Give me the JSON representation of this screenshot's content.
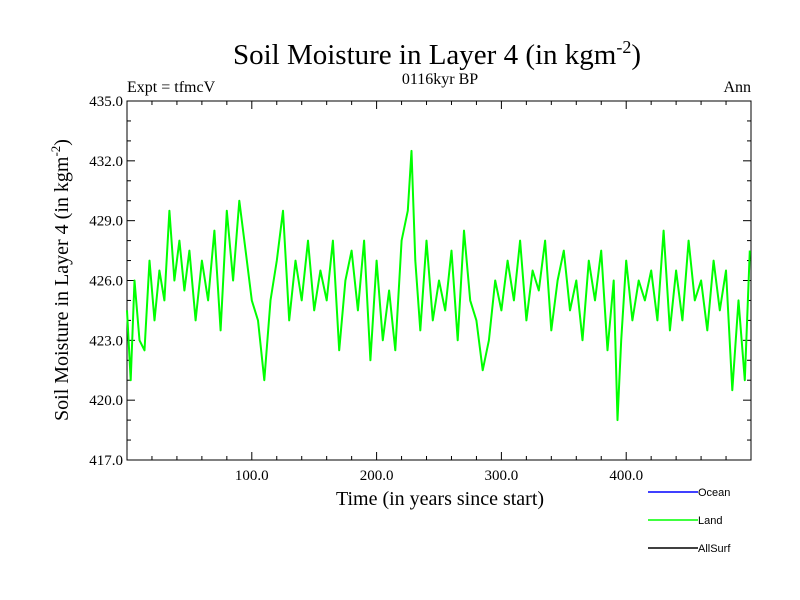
{
  "chart_data": {
    "type": "line",
    "title": "Soil Moisture in Layer 4 (in kgm",
    "title_superscript": "-2",
    "title_close": ")",
    "subtitle_left": "Expt = tfmcV",
    "subtitle_center": "0116kyr BP",
    "subtitle_right": "Ann",
    "xlabel": "Time (in years since start)",
    "ylabel": "Soil Moisture in Layer 4 (in kgm",
    "ylabel_superscript": "-2",
    "ylabel_close": ")",
    "xlim": [
      0,
      500
    ],
    "ylim": [
      417.0,
      435.0
    ],
    "xticks": [
      100,
      200,
      300,
      400
    ],
    "xtick_labels": [
      "100.0",
      "200.0",
      "300.0",
      "400.0"
    ],
    "yticks": [
      417,
      420,
      423,
      426,
      429,
      432,
      435
    ],
    "ytick_labels": [
      "417.0",
      "420.0",
      "423.0",
      "426.0",
      "429.0",
      "432.0",
      "435.0"
    ],
    "legend": [
      {
        "name": "Ocean",
        "color": "#0000ff"
      },
      {
        "name": "Land",
        "color": "#00ff00"
      },
      {
        "name": "AllSurf",
        "color": "#000000"
      }
    ],
    "series": [
      {
        "name": "Land",
        "color": "#00ff00",
        "x": [
          0,
          3,
          6,
          10,
          14,
          18,
          22,
          26,
          30,
          34,
          38,
          42,
          46,
          50,
          55,
          60,
          65,
          70,
          75,
          80,
          85,
          90,
          95,
          100,
          105,
          110,
          115,
          120,
          125,
          130,
          135,
          140,
          145,
          150,
          155,
          160,
          165,
          170,
          175,
          180,
          185,
          190,
          195,
          200,
          205,
          210,
          215,
          220,
          225,
          228,
          231,
          235,
          240,
          245,
          250,
          255,
          260,
          265,
          270,
          275,
          280,
          285,
          290,
          295,
          300,
          305,
          310,
          315,
          320,
          325,
          330,
          335,
          340,
          345,
          350,
          355,
          360,
          365,
          370,
          375,
          380,
          385,
          390,
          393,
          396,
          400,
          405,
          410,
          415,
          420,
          425,
          430,
          435,
          440,
          445,
          450,
          455,
          460,
          465,
          470,
          475,
          480,
          485,
          490,
          495,
          499
        ],
        "y": [
          424.5,
          421.0,
          426.0,
          423.0,
          422.5,
          427.0,
          424.0,
          426.5,
          425.0,
          429.5,
          426.0,
          428.0,
          425.5,
          427.5,
          424.0,
          427.0,
          425.0,
          428.5,
          423.5,
          429.5,
          426.0,
          430.0,
          427.5,
          425.0,
          424.0,
          421.0,
          425.0,
          427.0,
          429.5,
          424.0,
          427.0,
          425.0,
          428.0,
          424.5,
          426.5,
          425.0,
          428.0,
          422.5,
          426.0,
          427.5,
          424.5,
          428.0,
          422.0,
          427.0,
          423.0,
          425.5,
          422.5,
          428.0,
          429.5,
          432.5,
          427.0,
          423.5,
          428.0,
          424.0,
          426.0,
          424.5,
          427.5,
          423.0,
          428.5,
          425.0,
          424.0,
          421.5,
          423.0,
          426.0,
          424.5,
          427.0,
          425.0,
          428.0,
          424.0,
          426.5,
          425.5,
          428.0,
          423.5,
          426.0,
          427.5,
          424.5,
          426.0,
          423.0,
          427.0,
          425.0,
          427.5,
          422.5,
          426.0,
          419.0,
          423.0,
          427.0,
          424.0,
          426.0,
          425.0,
          426.5,
          424.0,
          428.5,
          423.5,
          426.5,
          424.0,
          428.0,
          425.0,
          426.0,
          423.5,
          427.0,
          424.5,
          426.5,
          420.5,
          425.0,
          421.0,
          427.5
        ]
      }
    ]
  }
}
